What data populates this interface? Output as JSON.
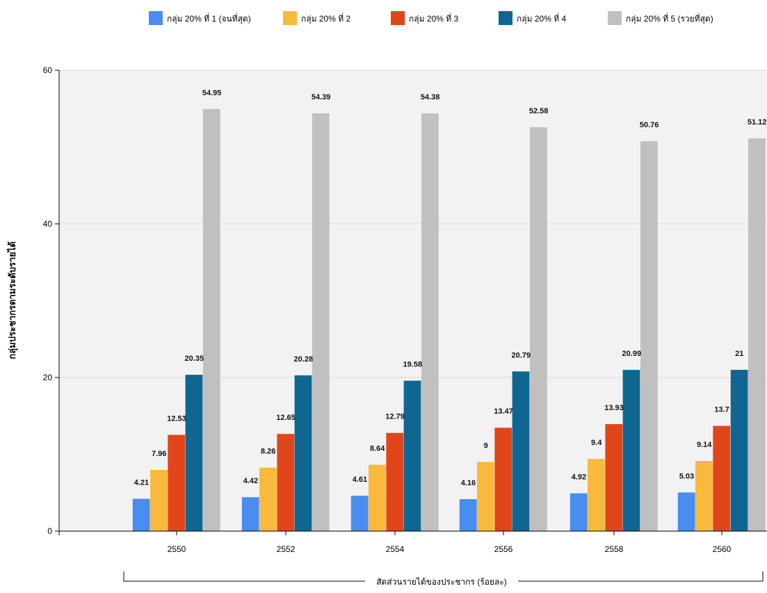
{
  "chart_data": {
    "type": "bar",
    "xlabel": "สัดส่วนรายได้ของประชากร (ร้อยละ)",
    "ylabel": "กลุ่มประชากรตามระดับรายได้",
    "ylim": [
      0,
      60
    ],
    "yticks": [
      0,
      20,
      40,
      60
    ],
    "grid": true,
    "legend_position": "top",
    "categories": [
      "2550",
      "2552",
      "2554",
      "2556",
      "2558",
      "2560"
    ],
    "series": [
      {
        "name": "กลุ่ม 20% ที่ 1 (จนที่สุด)",
        "color": "#4a8df0",
        "values": [
          4.21,
          4.42,
          4.61,
          4.16,
          4.92,
          5.03
        ]
      },
      {
        "name": "กลุ่ม 20% ที่ 2",
        "color": "#f9b93c",
        "values": [
          7.96,
          8.26,
          8.64,
          9,
          9.4,
          9.14
        ]
      },
      {
        "name": "กลุ่ม 20% ที่ 3",
        "color": "#e0461a",
        "values": [
          12.53,
          12.65,
          12.79,
          13.47,
          13.93,
          13.7
        ]
      },
      {
        "name": "กลุ่ม 20% ที่ 4",
        "color": "#0f6691",
        "values": [
          20.35,
          20.28,
          19.58,
          20.79,
          20.99,
          21
        ]
      },
      {
        "name": "กลุ่ม 20% ที่ 5 (รวยที่สุด)",
        "color": "#c0c0c0",
        "values": [
          54.95,
          54.39,
          54.38,
          52.58,
          50.76,
          51.12
        ]
      }
    ]
  }
}
